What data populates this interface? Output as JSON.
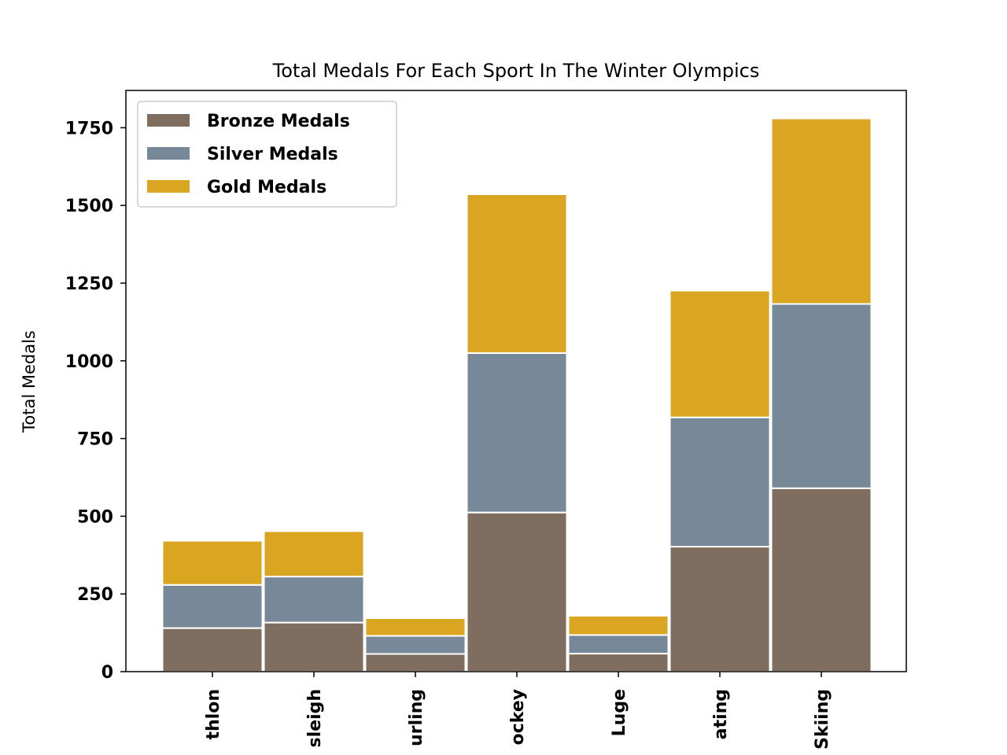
{
  "chart_data": {
    "type": "bar",
    "stacked": true,
    "title": "Total Medals For Each Sport In The Winter Olympics",
    "xlabel": "",
    "ylabel": "Total Medals",
    "ylim": [
      0,
      1870
    ],
    "yticks": [
      0,
      250,
      500,
      750,
      1000,
      1250,
      1500,
      1750
    ],
    "categories": [
      "Biathlon",
      "Bobsleigh",
      "Curling",
      "Ice Hockey",
      "Luge",
      "Skating",
      "Skiing"
    ],
    "visible_category_labels": [
      "thlon",
      "sleigh",
      "urling",
      "ockey",
      "Luge",
      "ating",
      "Skiing"
    ],
    "series": [
      {
        "name": "Bronze Medals",
        "color": "#7f6d5f",
        "values": [
          140,
          158,
          57,
          512,
          58,
          402,
          590
        ]
      },
      {
        "name": "Silver Medals",
        "color": "#778899",
        "values": [
          139,
          148,
          58,
          513,
          60,
          416,
          593
        ]
      },
      {
        "name": "Gold Medals",
        "color": "#daa520",
        "values": [
          142,
          146,
          57,
          511,
          62,
          408,
          597
        ]
      }
    ],
    "grid": false,
    "legend_position": "upper-left"
  }
}
